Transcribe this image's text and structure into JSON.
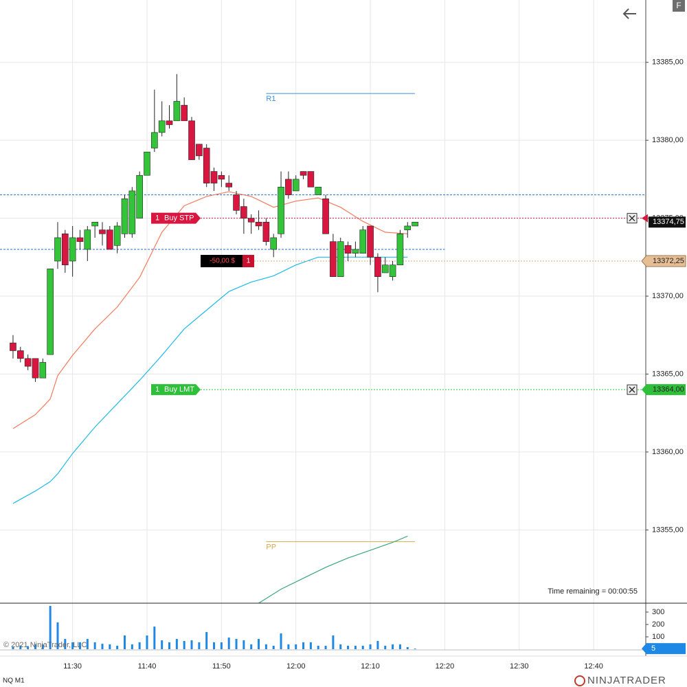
{
  "chart_data": {
    "type": "candlestick",
    "instrument": "NQ M1",
    "copyright": "© 2021 NinjaTrader, LLC",
    "time_remaining": "Time remaining = 00:00:55",
    "logo": "NINJATRADER",
    "f_button": "F",
    "x": [
      "11:22",
      "11:23",
      "11:24",
      "11:25",
      "11:26",
      "11:27",
      "11:28",
      "11:29",
      "11:30",
      "11:31",
      "11:32",
      "11:33",
      "11:34",
      "11:35",
      "11:36",
      "11:37",
      "11:38",
      "11:39",
      "11:40",
      "11:41",
      "11:42",
      "11:43",
      "11:44",
      "11:45",
      "11:46",
      "11:47",
      "11:48",
      "11:49",
      "11:50",
      "11:51",
      "11:52",
      "11:53",
      "11:54",
      "11:55",
      "11:56",
      "11:57",
      "11:58",
      "11:59",
      "12:00",
      "12:01",
      "12:02",
      "12:03",
      "12:04",
      "12:05",
      "12:06",
      "12:07",
      "12:08",
      "12:09",
      "12:10",
      "12:11",
      "12:12",
      "12:13",
      "12:14",
      "12:15",
      "12:16"
    ],
    "open": [
      13367.0,
      13366.5,
      13366.0,
      13366.0,
      13364.75,
      13366.25,
      13372.25,
      13374.0,
      13372.25,
      13373.75,
      13373.0,
      13374.5,
      13374.25,
      13374.25,
      13373.25,
      13374.0,
      13374.0,
      13375.0,
      13377.75,
      13379.5,
      13380.5,
      13381.25,
      13381.25,
      13382.25,
      13381.25,
      13379.75,
      13379.5,
      13378.0,
      13377.75,
      13377.25,
      13376.5,
      13375.75,
      13375.0,
      13374.75,
      13374.75,
      13373.0,
      13374.0,
      13377.5,
      13376.75,
      13378.0,
      13378.0,
      13376.5,
      13376.25,
      13373.5,
      13371.25,
      13373.25,
      13372.75,
      13372.75,
      13374.5,
      13372.5,
      13371.5,
      13371.25,
      13372.0,
      13374.25,
      13374.5
    ],
    "high": [
      13367.5,
      13366.75,
      13366.25,
      13366.0,
      13366.0,
      13371.75,
      13374.75,
      13374.25,
      13374.5,
      13374.25,
      13374.5,
      13374.75,
      13374.75,
      13374.5,
      13374.75,
      13376.5,
      13377.0,
      13378.0,
      13379.25,
      13383.25,
      13382.5,
      13382.25,
      13384.25,
      13382.75,
      13381.5,
      13379.75,
      13379.75,
      13378.25,
      13378.0,
      13377.75,
      13376.75,
      13376.25,
      13375.25,
      13375.5,
      13375.0,
      13374.0,
      13378.0,
      13378.0,
      13377.75,
      13378.0,
      13378.0,
      13377.0,
      13376.5,
      13374.0,
      13373.75,
      13373.5,
      13373.5,
      13374.5,
      13374.5,
      13372.75,
      13372.5,
      13372.25,
      13374.25,
      13374.75,
      13374.75
    ],
    "low": [
      13366.0,
      13365.75,
      13365.25,
      13364.5,
      13364.75,
      13366.25,
      13371.75,
      13371.5,
      13371.25,
      13373.0,
      13372.25,
      13373.75,
      13373.25,
      13373.0,
      13372.75,
      13373.75,
      13373.75,
      13375.0,
      13377.75,
      13379.25,
      13380.25,
      13380.75,
      13381.25,
      13381.25,
      13378.75,
      13378.75,
      13377.0,
      13376.75,
      13377.0,
      13376.75,
      13375.25,
      13374.0,
      13374.0,
      13374.25,
      13373.25,
      13372.5,
      13373.75,
      13376.25,
      13376.75,
      13377.5,
      13377.0,
      13376.5,
      13374.0,
      13371.25,
      13371.25,
      13372.25,
      13372.5,
      13372.75,
      13372.0,
      13370.25,
      13371.5,
      13371.0,
      13372.0,
      13373.75,
      13374.5
    ],
    "close": [
      13366.5,
      13366.0,
      13365.5,
      13364.75,
      13365.75,
      13371.75,
      13373.75,
      13372.0,
      13373.75,
      13373.5,
      13374.25,
      13374.75,
      13374.0,
      13373.0,
      13374.5,
      13376.25,
      13376.75,
      13377.75,
      13379.25,
      13380.5,
      13381.25,
      13381.0,
      13382.5,
      13381.25,
      13378.75,
      13379.0,
      13377.25,
      13377.25,
      13377.5,
      13377.0,
      13375.5,
      13375.0,
      13374.75,
      13374.5,
      13373.5,
      13373.75,
      13377.0,
      13376.5,
      13377.5,
      13377.75,
      13377.0,
      13377.0,
      13374.0,
      13371.25,
      13373.5,
      13372.75,
      13373.0,
      13374.25,
      13372.5,
      13371.25,
      13372.0,
      13372.0,
      13374.0,
      13374.5,
      13374.75
    ],
    "up_color": "#33c43a",
    "down_color": "#d8163f",
    "ylim": [
      13350.3,
      13389.0
    ],
    "yticks": [
      {
        "value": 13355,
        "label": "13355,00"
      },
      {
        "value": 13360,
        "label": "13360,00"
      },
      {
        "value": 13365,
        "label": "13365,00"
      },
      {
        "value": 13370,
        "label": "13370,00"
      },
      {
        "value": 13375,
        "label": "13375,00"
      },
      {
        "value": 13380,
        "label": "13380,00"
      },
      {
        "value": 13385,
        "label": "13385,00"
      }
    ],
    "xlim": [
      "11:20:15",
      "12:47:00"
    ],
    "xticks": [
      "11:30",
      "11:40",
      "11:50",
      "12:00",
      "12:10",
      "12:20",
      "12:30",
      "12:40"
    ],
    "grid": true,
    "moving_averages": [
      {
        "color": "#f47a5c",
        "x": [
          "11:22",
          "11:25",
          "11:27",
          "11:28",
          "11:30",
          "11:33",
          "11:36",
          "11:39",
          "11:42",
          "11:45",
          "11:48",
          "11:51",
          "11:54",
          "11:57",
          "12:00",
          "12:03",
          "12:06",
          "12:09",
          "12:12",
          "12:15"
        ],
        "values": [
          13361.5,
          13362.4,
          13363.4,
          13364.9,
          13366.2,
          13367.9,
          13369.3,
          13371.2,
          13374.1,
          13375.8,
          13376.4,
          13376.7,
          13376.4,
          13375.7,
          13376.1,
          13376.3,
          13375.7,
          13374.8,
          13374.1,
          13374.0
        ]
      },
      {
        "color": "#1fb9e8",
        "x": [
          "11:22",
          "11:25",
          "11:27",
          "11:28",
          "11:30",
          "11:33",
          "11:36",
          "11:39",
          "11:42",
          "11:45",
          "11:48",
          "11:51",
          "11:54",
          "11:57",
          "12:00",
          "12:03",
          "12:06",
          "12:09",
          "12:12",
          "12:15"
        ],
        "values": [
          13356.7,
          13357.5,
          13358.1,
          13358.6,
          13359.9,
          13361.6,
          13363.1,
          13364.6,
          13366.2,
          13367.9,
          13369.1,
          13370.3,
          13370.9,
          13371.3,
          13372.0,
          13372.5,
          13372.5,
          13372.5,
          13372.5,
          13372.5
        ]
      },
      {
        "color": "#3aa77a",
        "x": [
          "11:55",
          "11:58",
          "12:01",
          "12:04",
          "12:07",
          "12:10",
          "12:13",
          "12:15"
        ],
        "values": [
          13350.3,
          13351.2,
          13351.9,
          13352.6,
          13353.2,
          13353.7,
          13354.2,
          13354.6
        ]
      }
    ],
    "levels": [
      {
        "label": "R1",
        "value": 13383,
        "color": "#3d8fd6",
        "start": "11:56",
        "end": "12:16"
      },
      {
        "label": "PP",
        "value": 13354.25,
        "color": "#d2a84a",
        "start": "11:56",
        "end": "12:16"
      }
    ],
    "price_lines": [
      {
        "value": 13376.5,
        "color": "#1e6fd0"
      },
      {
        "value": 13373,
        "color": "#1e6fd0",
        "end": "12:20"
      }
    ],
    "orders": [
      {
        "quantity": 1,
        "label": "Buy STP",
        "price": 13375,
        "color": "#d8163f"
      },
      {
        "quantity": 1,
        "label": "Buy LMT",
        "price": {
          "value": 13364,
          "label": "13364,00"
        },
        "color": "#2fbf3a"
      }
    ],
    "position": {
      "pnl": "-50,00 $",
      "quantity": 1,
      "price": {
        "value": 13372.25,
        "label": "13372,25"
      },
      "color": "#e0a070"
    },
    "last_price": {
      "value": 13374.75,
      "label": "13374,75"
    },
    "volume": {
      "values": [
        20,
        30,
        25,
        40,
        39,
        350,
        217,
        83,
        56,
        56,
        83,
        56,
        44,
        39,
        28,
        111,
        39,
        56,
        111,
        183,
        72,
        56,
        83,
        67,
        72,
        56,
        139,
        56,
        56,
        94,
        83,
        72,
        39,
        83,
        39,
        28,
        128,
        39,
        39,
        56,
        56,
        28,
        28,
        111,
        39,
        28,
        28,
        28,
        39,
        67,
        28,
        39,
        39,
        17,
        5
      ],
      "color": "#1e88e5",
      "ylim": [
        0,
        372
      ],
      "yticks": [
        100,
        200,
        300
      ]
    }
  }
}
